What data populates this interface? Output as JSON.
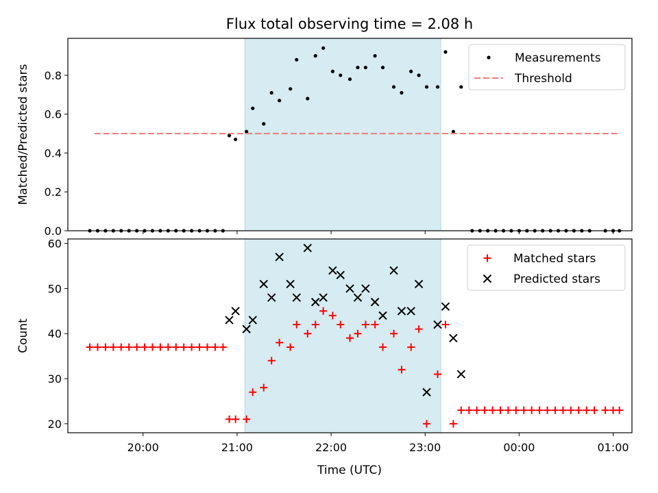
{
  "figure": {
    "title": "Flux total observing time = 2.08 h",
    "xlabel": "Time (UTC)",
    "x_ticks": [
      "20:00",
      "21:00",
      "22:00",
      "23:00",
      "00:00",
      "01:00"
    ],
    "highlight_color": "#add8e6"
  },
  "chart_data": [
    {
      "type": "scatter",
      "panel": "top",
      "ylabel": "Matched/Predicted stars",
      "ylim": [
        0,
        0.99
      ],
      "y_ticks": [
        0.0,
        0.2,
        0.4,
        0.6,
        0.8
      ],
      "y_tick_labels": [
        "0.0",
        "0.2",
        "0.4",
        "0.6",
        "0.8"
      ],
      "xlim": [
        "19:12",
        "01:12"
      ],
      "legend": {
        "position": "upper right",
        "entries": [
          "Measurements",
          "Threshold"
        ]
      },
      "highlight_span": {
        "start": "21:05",
        "end": "23:10",
        "color": "#add8e6"
      },
      "series": [
        {
          "name": "Measurements",
          "kind": "points",
          "color": "#000000",
          "points": [
            {
              "x": "19:26",
              "y": 0.0
            },
            {
              "x": "19:31",
              "y": 0.0
            },
            {
              "x": "19:36",
              "y": 0.0
            },
            {
              "x": "19:41",
              "y": 0.0
            },
            {
              "x": "19:46",
              "y": 0.0
            },
            {
              "x": "19:51",
              "y": 0.0
            },
            {
              "x": "19:56",
              "y": 0.0
            },
            {
              "x": "20:01",
              "y": 0.0
            },
            {
              "x": "20:06",
              "y": 0.0
            },
            {
              "x": "20:11",
              "y": 0.0
            },
            {
              "x": "20:16",
              "y": 0.0
            },
            {
              "x": "20:21",
              "y": 0.0
            },
            {
              "x": "20:26",
              "y": 0.0
            },
            {
              "x": "20:31",
              "y": 0.0
            },
            {
              "x": "20:36",
              "y": 0.0
            },
            {
              "x": "20:41",
              "y": 0.0
            },
            {
              "x": "20:46",
              "y": 0.0
            },
            {
              "x": "20:51",
              "y": 0.0
            },
            {
              "x": "20:55",
              "y": 0.49
            },
            {
              "x": "20:59",
              "y": 0.47
            },
            {
              "x": "21:06",
              "y": 0.51
            },
            {
              "x": "21:10",
              "y": 0.63
            },
            {
              "x": "21:17",
              "y": 0.55
            },
            {
              "x": "21:22",
              "y": 0.71
            },
            {
              "x": "21:27",
              "y": 0.67
            },
            {
              "x": "21:34",
              "y": 0.73
            },
            {
              "x": "21:38",
              "y": 0.88
            },
            {
              "x": "21:45",
              "y": 0.68
            },
            {
              "x": "21:50",
              "y": 0.9
            },
            {
              "x": "21:55",
              "y": 0.94
            },
            {
              "x": "22:01",
              "y": 0.82
            },
            {
              "x": "22:06",
              "y": 0.8
            },
            {
              "x": "22:12",
              "y": 0.78
            },
            {
              "x": "22:17",
              "y": 0.84
            },
            {
              "x": "22:22",
              "y": 0.84
            },
            {
              "x": "22:28",
              "y": 0.9
            },
            {
              "x": "22:33",
              "y": 0.84
            },
            {
              "x": "22:40",
              "y": 0.74
            },
            {
              "x": "22:45",
              "y": 0.71
            },
            {
              "x": "22:51",
              "y": 0.82
            },
            {
              "x": "22:56",
              "y": 0.8
            },
            {
              "x": "23:01",
              "y": 0.74
            },
            {
              "x": "23:08",
              "y": 0.74
            },
            {
              "x": "23:13",
              "y": 0.92
            },
            {
              "x": "23:18",
              "y": 0.51
            },
            {
              "x": "23:23",
              "y": 0.74
            },
            {
              "x": "23:30",
              "y": 0.0
            },
            {
              "x": "23:35",
              "y": 0.0
            },
            {
              "x": "23:40",
              "y": 0.0
            },
            {
              "x": "23:45",
              "y": 0.0
            },
            {
              "x": "23:50",
              "y": 0.0
            },
            {
              "x": "23:55",
              "y": 0.0
            },
            {
              "x": "00:00",
              "y": 0.0
            },
            {
              "x": "00:05",
              "y": 0.0
            },
            {
              "x": "00:10",
              "y": 0.0
            },
            {
              "x": "00:15",
              "y": 0.0
            },
            {
              "x": "00:20",
              "y": 0.0
            },
            {
              "x": "00:25",
              "y": 0.0
            },
            {
              "x": "00:30",
              "y": 0.0
            },
            {
              "x": "00:35",
              "y": 0.0
            },
            {
              "x": "00:40",
              "y": 0.0
            },
            {
              "x": "00:45",
              "y": 0.0
            },
            {
              "x": "00:55",
              "y": 0.0
            },
            {
              "x": "01:00",
              "y": 0.0
            },
            {
              "x": "01:04",
              "y": 0.0
            }
          ]
        },
        {
          "name": "Threshold",
          "kind": "dashed-line",
          "color": "#f08080",
          "points": [
            {
              "x": "19:29",
              "y": 0.5
            },
            {
              "x": "01:04",
              "y": 0.5
            }
          ]
        }
      ]
    },
    {
      "type": "scatter",
      "panel": "bottom",
      "ylabel": "Count",
      "ylim": [
        18,
        61
      ],
      "y_ticks": [
        20,
        30,
        40,
        50,
        60
      ],
      "y_tick_labels": [
        "20",
        "30",
        "40",
        "50",
        "60"
      ],
      "xlim": [
        "19:12",
        "01:12"
      ],
      "legend": {
        "position": "upper right",
        "entries": [
          "Matched stars",
          "Predicted stars"
        ]
      },
      "highlight_span": {
        "start": "21:05",
        "end": "23:10",
        "color": "#add8e6"
      },
      "series": [
        {
          "name": "Matched stars",
          "marker": "plus",
          "color": "#ff0000",
          "points": [
            {
              "x": "19:26",
              "y": 37
            },
            {
              "x": "19:31",
              "y": 37
            },
            {
              "x": "19:36",
              "y": 37
            },
            {
              "x": "19:41",
              "y": 37
            },
            {
              "x": "19:46",
              "y": 37
            },
            {
              "x": "19:51",
              "y": 37
            },
            {
              "x": "19:56",
              "y": 37
            },
            {
              "x": "20:01",
              "y": 37
            },
            {
              "x": "20:06",
              "y": 37
            },
            {
              "x": "20:11",
              "y": 37
            },
            {
              "x": "20:16",
              "y": 37
            },
            {
              "x": "20:21",
              "y": 37
            },
            {
              "x": "20:26",
              "y": 37
            },
            {
              "x": "20:31",
              "y": 37
            },
            {
              "x": "20:36",
              "y": 37
            },
            {
              "x": "20:41",
              "y": 37
            },
            {
              "x": "20:46",
              "y": 37
            },
            {
              "x": "20:51",
              "y": 37
            },
            {
              "x": "20:55",
              "y": 21
            },
            {
              "x": "20:59",
              "y": 21
            },
            {
              "x": "21:06",
              "y": 21
            },
            {
              "x": "21:10",
              "y": 27
            },
            {
              "x": "21:17",
              "y": 28
            },
            {
              "x": "21:22",
              "y": 34
            },
            {
              "x": "21:27",
              "y": 38
            },
            {
              "x": "21:34",
              "y": 37
            },
            {
              "x": "21:38",
              "y": 42
            },
            {
              "x": "21:45",
              "y": 40
            },
            {
              "x": "21:50",
              "y": 42
            },
            {
              "x": "21:55",
              "y": 45
            },
            {
              "x": "22:01",
              "y": 44
            },
            {
              "x": "22:06",
              "y": 42
            },
            {
              "x": "22:12",
              "y": 39
            },
            {
              "x": "22:17",
              "y": 40
            },
            {
              "x": "22:22",
              "y": 42
            },
            {
              "x": "22:28",
              "y": 42
            },
            {
              "x": "22:33",
              "y": 37
            },
            {
              "x": "22:40",
              "y": 40
            },
            {
              "x": "22:45",
              "y": 32
            },
            {
              "x": "22:51",
              "y": 37
            },
            {
              "x": "22:56",
              "y": 41
            },
            {
              "x": "23:01",
              "y": 20
            },
            {
              "x": "23:08",
              "y": 31
            },
            {
              "x": "23:13",
              "y": 42
            },
            {
              "x": "23:18",
              "y": 20
            },
            {
              "x": "23:23",
              "y": 23
            },
            {
              "x": "23:28",
              "y": 23
            },
            {
              "x": "23:33",
              "y": 23
            },
            {
              "x": "23:38",
              "y": 23
            },
            {
              "x": "23:43",
              "y": 23
            },
            {
              "x": "23:48",
              "y": 23
            },
            {
              "x": "23:53",
              "y": 23
            },
            {
              "x": "23:58",
              "y": 23
            },
            {
              "x": "00:03",
              "y": 23
            },
            {
              "x": "00:08",
              "y": 23
            },
            {
              "x": "00:13",
              "y": 23
            },
            {
              "x": "00:18",
              "y": 23
            },
            {
              "x": "00:23",
              "y": 23
            },
            {
              "x": "00:28",
              "y": 23
            },
            {
              "x": "00:33",
              "y": 23
            },
            {
              "x": "00:38",
              "y": 23
            },
            {
              "x": "00:43",
              "y": 23
            },
            {
              "x": "00:48",
              "y": 23
            },
            {
              "x": "00:55",
              "y": 23
            },
            {
              "x": "01:00",
              "y": 23
            },
            {
              "x": "01:04",
              "y": 23
            }
          ]
        },
        {
          "name": "Predicted stars",
          "marker": "x",
          "color": "#000000",
          "points": [
            {
              "x": "20:55",
              "y": 43
            },
            {
              "x": "20:59",
              "y": 45
            },
            {
              "x": "21:06",
              "y": 41
            },
            {
              "x": "21:10",
              "y": 43
            },
            {
              "x": "21:17",
              "y": 51
            },
            {
              "x": "21:22",
              "y": 48
            },
            {
              "x": "21:27",
              "y": 57
            },
            {
              "x": "21:34",
              "y": 51
            },
            {
              "x": "21:38",
              "y": 48
            },
            {
              "x": "21:45",
              "y": 59
            },
            {
              "x": "21:50",
              "y": 47
            },
            {
              "x": "21:55",
              "y": 48
            },
            {
              "x": "22:01",
              "y": 54
            },
            {
              "x": "22:06",
              "y": 53
            },
            {
              "x": "22:12",
              "y": 50
            },
            {
              "x": "22:17",
              "y": 48
            },
            {
              "x": "22:22",
              "y": 50
            },
            {
              "x": "22:28",
              "y": 47
            },
            {
              "x": "22:33",
              "y": 44
            },
            {
              "x": "22:40",
              "y": 54
            },
            {
              "x": "22:45",
              "y": 45
            },
            {
              "x": "22:51",
              "y": 45
            },
            {
              "x": "22:56",
              "y": 51
            },
            {
              "x": "23:01",
              "y": 27
            },
            {
              "x": "23:08",
              "y": 42
            },
            {
              "x": "23:13",
              "y": 46
            },
            {
              "x": "23:18",
              "y": 39
            },
            {
              "x": "23:23",
              "y": 31
            }
          ]
        }
      ]
    }
  ]
}
